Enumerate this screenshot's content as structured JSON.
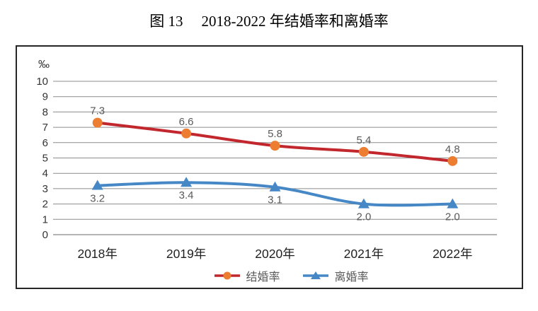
{
  "title": {
    "prefix": "图 13",
    "text": "2018-2022 年结婚率和离婚率"
  },
  "chart_data": {
    "type": "line",
    "categories": [
      "2018年",
      "2019年",
      "2020年",
      "2021年",
      "2022年"
    ],
    "series": [
      {
        "id": "marriage-rate",
        "name": "结婚率",
        "values": [
          7.3,
          6.6,
          5.8,
          5.4,
          4.8
        ],
        "line_color": "#C1272D",
        "marker": "circle",
        "marker_color": "#ED7D31",
        "label_position": "above"
      },
      {
        "id": "divorce-rate",
        "name": "离婚率",
        "values": [
          3.2,
          3.4,
          3.1,
          2.0,
          2.0
        ],
        "line_color": "#4688C6",
        "marker": "triangle",
        "marker_color": "#4688C6",
        "label_position": "below"
      }
    ],
    "unit_label": "‰",
    "y_ticks": [
      0,
      1,
      2,
      3,
      4,
      5,
      6,
      7,
      8,
      9,
      10
    ],
    "ylim": [
      0,
      10
    ],
    "grid": true,
    "legend_position": "bottom",
    "colors": {
      "gridline": "#8C8C8C",
      "zero_line": "#B3B3B3",
      "tick_label": "#333333",
      "x_label": "#1F1F1F",
      "data_label": "#595959",
      "legend_label": "#595959",
      "frame_border": "#262626"
    }
  }
}
